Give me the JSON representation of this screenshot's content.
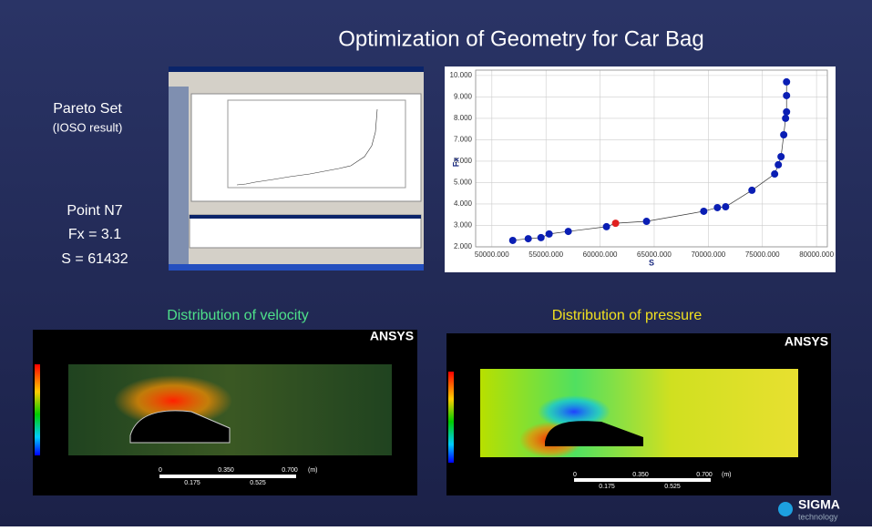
{
  "title": "Optimization of  Geometry for Car Bag",
  "left": {
    "pareto": "Pareto Set",
    "pareto_sub": "(IOSO result)",
    "point": "Point N7",
    "fx": "Fx = 3.1",
    "s": "S = 61432"
  },
  "chart_data": {
    "type": "scatter",
    "x_label": "S",
    "y_label": "Fx",
    "color": "#0a1eb4",
    "line_color": "#333333",
    "point_colors": [
      "#0a1eb4",
      "#0a1eb4",
      "#0a1eb4",
      "#0a1eb4",
      "#0a1eb4",
      "#0a1eb4",
      "#e02020",
      "#0a1eb4",
      "#0a1eb4",
      "#0a1eb4",
      "#0a1eb4",
      "#0a1eb4",
      "#0a1eb4",
      "#0a1eb4",
      "#0a1eb4",
      "#0a1eb4",
      "#0a1eb4",
      "#0a1eb4",
      "#0a1eb4",
      "#0a1eb4"
    ],
    "x": [
      51930,
      53360,
      54540,
      55290,
      57060,
      60590,
      61432,
      64290,
      69580,
      70840,
      71600,
      74030,
      76130,
      76470,
      76720,
      76970,
      77140,
      77230,
      77230,
      77230
    ],
    "values": [
      2.3,
      2.38,
      2.43,
      2.6,
      2.72,
      2.94,
      3.1,
      3.19,
      3.66,
      3.83,
      3.87,
      4.64,
      5.4,
      5.83,
      6.21,
      7.23,
      8.0,
      8.3,
      9.06,
      9.7
    ],
    "xlim": [
      48500,
      81000
    ],
    "ylim": [
      2,
      10.25
    ],
    "xticks": [
      {
        "value": 50000,
        "label": "50000.000"
      },
      {
        "value": 55000,
        "label": "55000.000"
      },
      {
        "value": 60000,
        "label": "60000.000"
      },
      {
        "value": 65000,
        "label": "65000.000"
      },
      {
        "value": 70000,
        "label": "70000.000"
      },
      {
        "value": 75000,
        "label": "75000.000"
      },
      {
        "value": 80000,
        "label": "80000.000"
      }
    ],
    "yticks": [
      {
        "value": 2,
        "label": "2.000"
      },
      {
        "value": 3,
        "label": "3.000"
      },
      {
        "value": 4,
        "label": "4.000"
      },
      {
        "value": 5,
        "label": "5.000"
      },
      {
        "value": 6,
        "label": "6.000"
      },
      {
        "value": 7,
        "label": "7.000"
      },
      {
        "value": 8,
        "label": "8.000"
      },
      {
        "value": 9,
        "label": "9.000"
      },
      {
        "value": 10,
        "label": "10.000"
      }
    ],
    "grid": true
  },
  "velocity": {
    "caption": "Distribution of velocity",
    "brand": "ANSYS",
    "scale": [
      "0",
      "0.350",
      "0.700",
      "(m)"
    ],
    "sub": [
      "0.175",
      "0.525"
    ]
  },
  "pressure": {
    "caption": "Distribution of pressure",
    "brand": "ANSYS",
    "scale": [
      "0",
      "0.350",
      "0.700",
      "(m)"
    ],
    "sub": [
      "0.175",
      "0.525"
    ]
  },
  "logo": {
    "name": "SIGMA",
    "sub": "technology"
  }
}
